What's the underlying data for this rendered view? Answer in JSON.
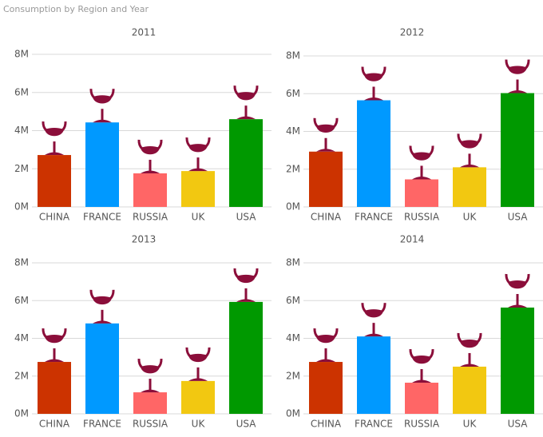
{
  "title": "Consumption by Region and Year",
  "chart_data": [
    {
      "type": "bar",
      "title": "2011",
      "categories": [
        "CHINA",
        "FRANCE",
        "RUSSIA",
        "UK",
        "USA"
      ],
      "values": [
        2720000,
        4430000,
        1760000,
        1880000,
        4600000
      ],
      "colors": [
        "#cc3300",
        "#0099ff",
        "#ff6666",
        "#f2c811",
        "#009900"
      ],
      "ylim": [
        0,
        8000000
      ],
      "yticks": [
        {
          "value": 0,
          "label": "0M"
        },
        {
          "value": 2000000,
          "label": "2M"
        },
        {
          "value": 4000000,
          "label": "4M"
        },
        {
          "value": 6000000,
          "label": "6M"
        },
        {
          "value": 8000000,
          "label": "8M"
        }
      ],
      "grid": true
    },
    {
      "type": "bar",
      "title": "2012",
      "categories": [
        "CHINA",
        "FRANCE",
        "RUSSIA",
        "UK",
        "USA"
      ],
      "values": [
        2930000,
        5650000,
        1460000,
        2100000,
        6030000
      ],
      "colors": [
        "#cc3300",
        "#0099ff",
        "#ff6666",
        "#f2c811",
        "#009900"
      ],
      "ylim": [
        0,
        8000000
      ],
      "yticks": [
        {
          "value": 0,
          "label": "0M"
        },
        {
          "value": 2000000,
          "label": "2M"
        },
        {
          "value": 4000000,
          "label": "4M"
        },
        {
          "value": 6000000,
          "label": "6M"
        },
        {
          "value": 8000000,
          "label": "8M"
        }
      ],
      "grid": true
    },
    {
      "type": "bar",
      "title": "2013",
      "categories": [
        "CHINA",
        "FRANCE",
        "RUSSIA",
        "UK",
        "USA"
      ],
      "values": [
        2750000,
        4790000,
        1140000,
        1740000,
        5930000
      ],
      "colors": [
        "#cc3300",
        "#0099ff",
        "#ff6666",
        "#f2c811",
        "#009900"
      ],
      "ylim": [
        0,
        8000000
      ],
      "yticks": [
        {
          "value": 0,
          "label": "0M"
        },
        {
          "value": 2000000,
          "label": "2M"
        },
        {
          "value": 4000000,
          "label": "4M"
        },
        {
          "value": 6000000,
          "label": "6M"
        },
        {
          "value": 8000000,
          "label": "8M"
        }
      ],
      "grid": true
    },
    {
      "type": "bar",
      "title": "2014",
      "categories": [
        "CHINA",
        "FRANCE",
        "RUSSIA",
        "UK",
        "USA"
      ],
      "values": [
        2750000,
        4100000,
        1650000,
        2500000,
        5630000
      ],
      "colors": [
        "#cc3300",
        "#0099ff",
        "#ff6666",
        "#f2c811",
        "#009900"
      ],
      "ylim": [
        0,
        8000000
      ],
      "yticks": [
        {
          "value": 0,
          "label": "0M"
        },
        {
          "value": 2000000,
          "label": "2M"
        },
        {
          "value": 4000000,
          "label": "4M"
        },
        {
          "value": 6000000,
          "label": "6M"
        },
        {
          "value": 8000000,
          "label": "8M"
        }
      ],
      "grid": true
    }
  ]
}
